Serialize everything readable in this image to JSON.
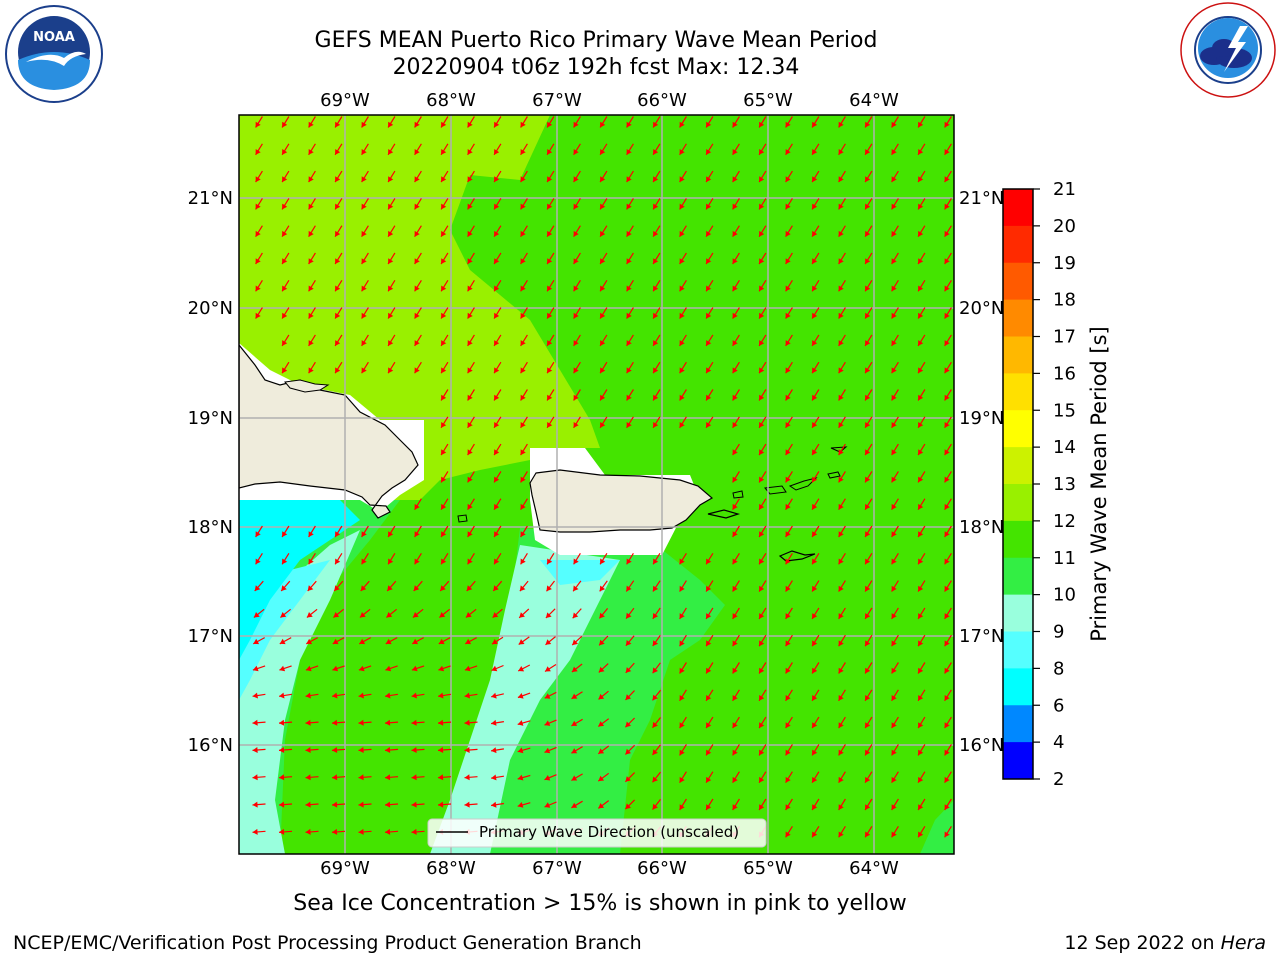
{
  "header": {
    "title_line1": "GEFS MEAN Puerto Rico Primary Wave Mean Period",
    "title_line2": "20220904 t06z 192h fcst   Max: 12.34"
  },
  "map": {
    "lon_labels": [
      "69°W",
      "68°W",
      "67°W",
      "66°W",
      "65°W",
      "64°W"
    ],
    "lat_labels": [
      "21°N",
      "20°N",
      "19°N",
      "18°N",
      "17°N",
      "16°N"
    ],
    "legend_label": "Primary Wave Direction (unscaled)",
    "arrow_color": "#ff0000"
  },
  "colorbar": {
    "label": "Primary Wave Mean Period [s]",
    "ticks": [
      "21",
      "20",
      "19",
      "18",
      "17",
      "16",
      "15",
      "14",
      "13",
      "12",
      "11",
      "10",
      "9",
      "8",
      "6",
      "4",
      "2"
    ],
    "colors": [
      "#ff0000",
      "#ff2a00",
      "#ff5a00",
      "#ff8a00",
      "#ffb800",
      "#ffe000",
      "#ffff00",
      "#ccf200",
      "#99f000",
      "#44e400",
      "#33ee44",
      "#99ffdd",
      "#55ffff",
      "#00ffff",
      "#0088ff",
      "#0000ff"
    ]
  },
  "caption": "Sea Ice Concentration > 15% is shown in pink to yellow",
  "footer": {
    "left": "NCEP/EMC/Verification Post Processing Product Generation Branch",
    "date": "12 Sep 2022 on",
    "host": "Hera"
  }
}
